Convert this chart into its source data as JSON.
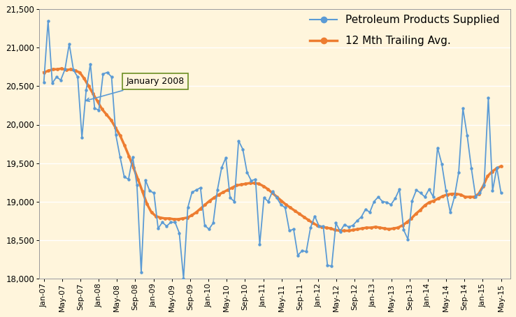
{
  "background_color": "#FFF5DC",
  "ylim": [
    18000,
    21500
  ],
  "yticks": [
    18000,
    18500,
    19000,
    19500,
    20000,
    20500,
    21000,
    21500
  ],
  "x_labels": [
    "Jan-07",
    "May-07",
    "Sep-07",
    "Jan-08",
    "May-08",
    "Sep-08",
    "Jan-09",
    "May-09",
    "Sep-09",
    "Jan-10",
    "May-10",
    "Sep-10",
    "Jan-11",
    "May-11",
    "Sep-11",
    "Jan-12",
    "May-12",
    "Sep-12",
    "Jan-13",
    "May-13",
    "Sep-13",
    "Jan-14",
    "May-14",
    "Sep-14",
    "Jan-15",
    "May-15"
  ],
  "line1_color": "#5B9BD5",
  "line2_color": "#ED7D31",
  "line1_label": "Petroleum Products Supplied",
  "line2_label": "12 Mth Trailing Avg.",
  "annotation_text": "January 2008",
  "line1_values": [
    20550,
    21350,
    20540,
    20620,
    20580,
    20720,
    21050,
    20710,
    20620,
    19830,
    20450,
    20790,
    20210,
    20190,
    20660,
    20680,
    20620,
    19870,
    19580,
    19320,
    19290,
    19580,
    19210,
    18080,
    19280,
    19140,
    19110,
    18650,
    18730,
    18680,
    18730,
    18730,
    18590,
    18000,
    18920,
    19120,
    19150,
    19180,
    18690,
    18640,
    18720,
    19150,
    19440,
    19570,
    19050,
    19000,
    19790,
    19680,
    19380,
    19270,
    19290,
    18440,
    19050,
    19000,
    19130,
    19050,
    18960,
    18920,
    18620,
    18640,
    18300,
    18360,
    18350,
    18660,
    18810,
    18680,
    18680,
    18170,
    18160,
    18720,
    18610,
    18700,
    18670,
    18690,
    18750,
    18800,
    18900,
    18860,
    19000,
    19060,
    19000,
    18990,
    18960,
    19040,
    19160,
    18630,
    18510,
    19010,
    19150,
    19110,
    19060,
    19160,
    19060,
    19700,
    19490,
    19140,
    18860,
    19060,
    19380,
    20210,
    19860,
    19430,
    19060,
    19110,
    19210,
    20350,
    19140,
    19440,
    19110
  ],
  "line2_values": [
    20680,
    20700,
    20720,
    20720,
    20730,
    20710,
    20720,
    20700,
    20680,
    20600,
    20500,
    20400,
    20300,
    20200,
    20130,
    20060,
    19960,
    19860,
    19730,
    19590,
    19440,
    19290,
    19130,
    18970,
    18860,
    18810,
    18790,
    18780,
    18780,
    18770,
    18770,
    18780,
    18790,
    18820,
    18860,
    18910,
    18960,
    19010,
    19050,
    19090,
    19120,
    19150,
    19180,
    19210,
    19220,
    19230,
    19240,
    19240,
    19230,
    19200,
    19160,
    19110,
    19060,
    19010,
    18960,
    18920,
    18880,
    18840,
    18800,
    18760,
    18720,
    18690,
    18670,
    18660,
    18650,
    18630,
    18620,
    18620,
    18620,
    18630,
    18640,
    18650,
    18660,
    18660,
    18670,
    18660,
    18650,
    18640,
    18650,
    18660,
    18690,
    18730,
    18780,
    18840,
    18890,
    18950,
    18990,
    19010,
    19040,
    19070,
    19090,
    19100,
    19100,
    19090,
    19060,
    19060,
    19060,
    19100,
    19200,
    19330,
    19390,
    19430,
    19460
  ]
}
